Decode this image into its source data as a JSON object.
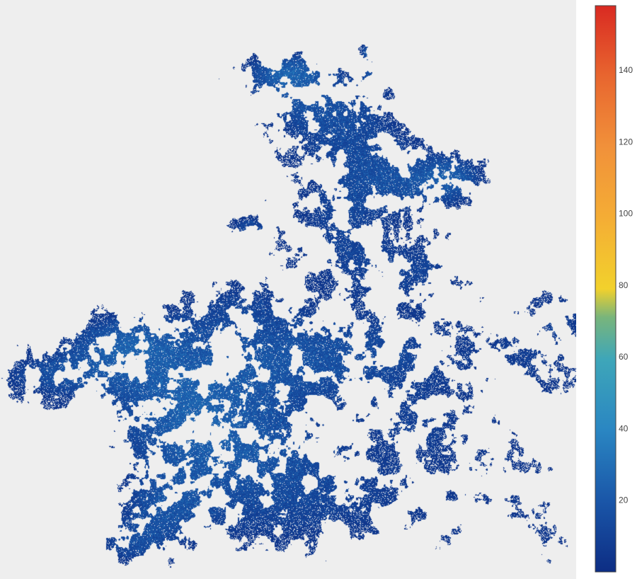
{
  "chart_data": {
    "type": "heatmap",
    "title": "",
    "xlabel": "",
    "ylabel": "",
    "colorscale": [
      [
        0.0,
        "#0d2d84"
      ],
      [
        0.125,
        "#1a56a8"
      ],
      [
        0.25,
        "#2a86c2"
      ],
      [
        0.375,
        "#3ea6b9"
      ],
      [
        0.45,
        "#79b57b"
      ],
      [
        0.5,
        "#f2d12c"
      ],
      [
        0.625,
        "#f4ad35"
      ],
      [
        0.75,
        "#f1913a"
      ],
      [
        0.875,
        "#e8662f"
      ],
      [
        1.0,
        "#d92a22"
      ]
    ],
    "zmin": 0,
    "zmax": 158,
    "colorbar": {
      "tickvals": [
        20,
        40,
        60,
        80,
        100,
        120,
        140
      ],
      "ticktext": [
        "20",
        "40",
        "60",
        "80",
        "100",
        "120",
        "140"
      ]
    },
    "background_color": "#eeeeee",
    "value_distribution": "most non-empty cells between 2 and 40; rare cells up to ~70",
    "grid": false,
    "legend": "colorbar-right"
  }
}
